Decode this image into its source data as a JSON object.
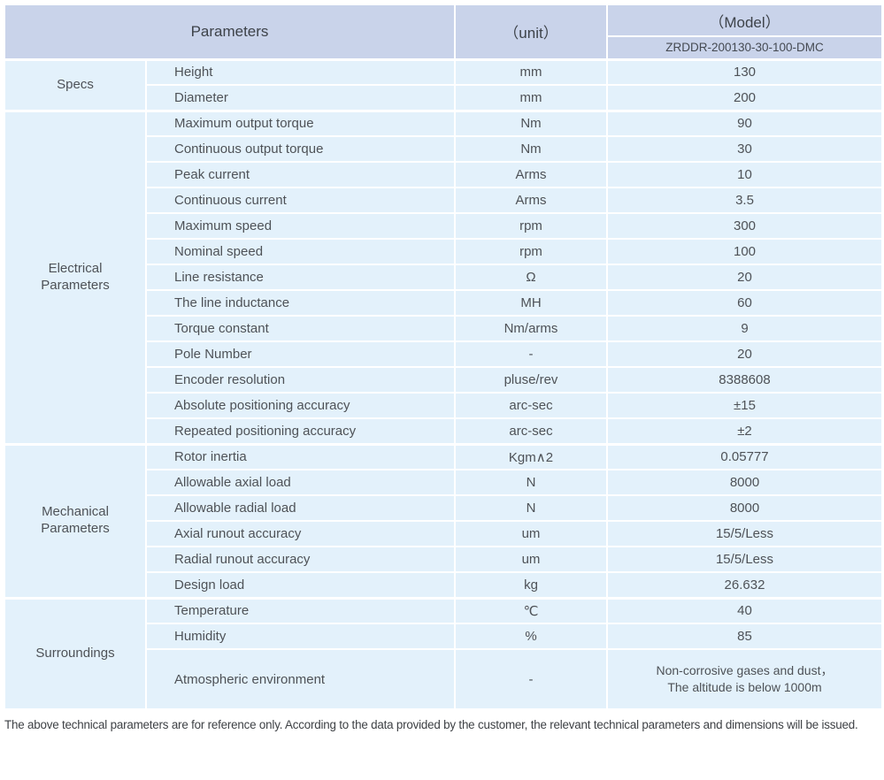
{
  "header": {
    "parameters": "Parameters",
    "unit": "（unit）",
    "model": "（Model）",
    "model_value": "ZRDDR-200130-30-100-DMC"
  },
  "colors": {
    "header_bg": "#c9d3ea",
    "row_bg": "#e3f1fb",
    "grid": "#ffffff"
  },
  "sections": [
    {
      "name": "Specs",
      "rows": [
        {
          "param": "Height",
          "unit": "mm",
          "value": "130"
        },
        {
          "param": "Diameter",
          "unit": "mm",
          "value": "200"
        }
      ]
    },
    {
      "name": "Electrical Parameters",
      "rows": [
        {
          "param": "Maximum output torque",
          "unit": "Nm",
          "value": "90"
        },
        {
          "param": "Continuous output torque",
          "unit": "Nm",
          "value": "30"
        },
        {
          "param": "Peak current",
          "unit": "Arms",
          "value": "10"
        },
        {
          "param": "Continuous current",
          "unit": "Arms",
          "value": "3.5"
        },
        {
          "param": "Maximum speed",
          "unit": "rpm",
          "value": "300"
        },
        {
          "param": "Nominal speed",
          "unit": "rpm",
          "value": "100"
        },
        {
          "param": "Line resistance",
          "unit": "Ω",
          "value": "20"
        },
        {
          "param": "The line inductance",
          "unit": "MH",
          "value": "60"
        },
        {
          "param": "Torque constant",
          "unit": "Nm/arms",
          "value": "9"
        },
        {
          "param": "Pole Number",
          "unit": "-",
          "value": "20"
        },
        {
          "param": "Encoder resolution",
          "unit": "pluse/rev",
          "value": "8388608"
        },
        {
          "param": "Absolute positioning accuracy",
          "unit": "arc-sec",
          "value": "±15"
        },
        {
          "param": "Repeated positioning accuracy",
          "unit": "arc-sec",
          "value": "±2"
        }
      ]
    },
    {
      "name": "Mechanical Parameters",
      "rows": [
        {
          "param": "Rotor inertia",
          "unit": "Kgm∧2",
          "value": "0.05777"
        },
        {
          "param": "Allowable axial load",
          "unit": "N",
          "value": "8000"
        },
        {
          "param": "Allowable radial load",
          "unit": "N",
          "value": "8000"
        },
        {
          "param": "Axial runout accuracy",
          "unit": "um",
          "value": "15/5/Less"
        },
        {
          "param": "Radial runout accuracy",
          "unit": "um",
          "value": "15/5/Less"
        },
        {
          "param": "Design load",
          "unit": "kg",
          "value": "26.632"
        }
      ]
    },
    {
      "name": "Surroundings",
      "rows": [
        {
          "param": "Temperature",
          "unit": "℃",
          "value": "40"
        },
        {
          "param": "Humidity",
          "unit": "%",
          "value": "85"
        },
        {
          "param": "Atmospheric environment",
          "unit": "-",
          "value_line1": "Non-corrosive gases and dust，",
          "value_line2": "The altitude is below 1000m"
        }
      ]
    }
  ],
  "footer": {
    "note": "The above technical parameters are for reference only. According to the data provided by the customer, the relevant technical parameters and dimensions will be issued."
  }
}
